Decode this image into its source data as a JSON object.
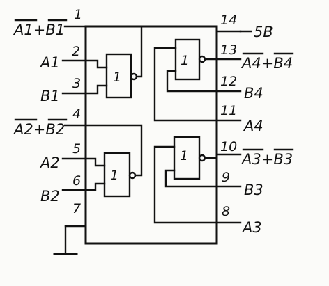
{
  "pins": {
    "p1": "1",
    "p2": "2",
    "p3": "3",
    "p4": "4",
    "p5": "5",
    "p6": "6",
    "p7": "7",
    "p8": "8",
    "p9": "9",
    "p10": "10",
    "p11": "11",
    "p12": "12",
    "p13": "13",
    "p14": "14"
  },
  "signals": {
    "s1": "A1+B1",
    "s2": "A1",
    "s3": "B1",
    "s4": "A2+B2",
    "s5": "A2",
    "s6": "B2",
    "s8": "A3",
    "s9": "B3",
    "s10": "A3+B3",
    "s11": "A4",
    "s12": "B4",
    "s13": "A4+B4",
    "s14": "5B"
  },
  "gate_label": "1",
  "colors": {
    "ink": "#111111",
    "paper": "#fbfbf9"
  }
}
